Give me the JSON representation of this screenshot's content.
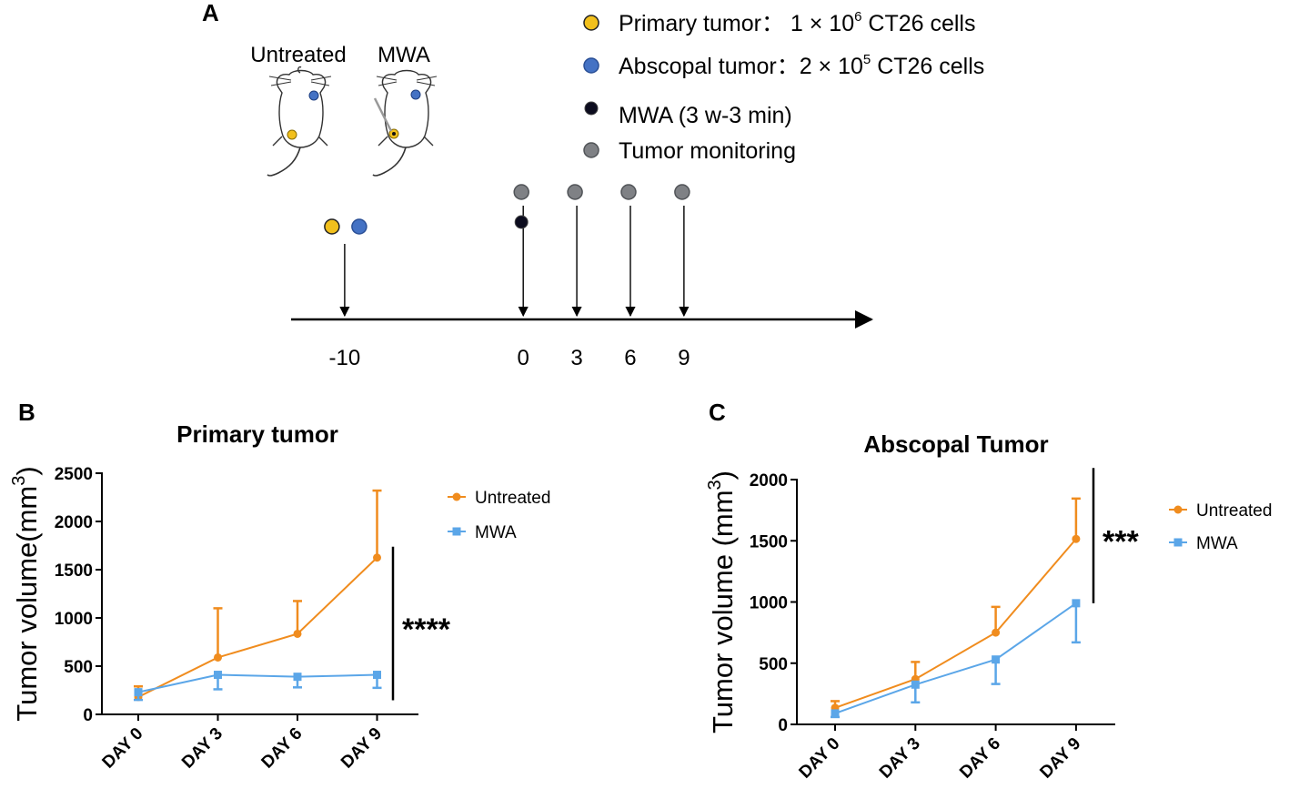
{
  "panel_a": {
    "letter": "A",
    "mouse_labels": [
      "Untreated",
      "MWA"
    ],
    "legend": [
      {
        "prefix": "Primary tumor： 1 × 10",
        "sup": "6",
        "suffix": " CT26 cells",
        "color": "#f2c01c"
      },
      {
        "prefix": "Abscopal tumor：2 × 10",
        "sup": "5",
        "suffix": " CT26 cells",
        "color": "#4472c4"
      },
      {
        "prefix": "MWA (3 w-3 min)",
        "sup": "",
        "suffix": "",
        "color": "#0c0c1e"
      },
      {
        "prefix": "Tumor monitoring",
        "sup": "",
        "suffix": "",
        "color": "#7f8185"
      }
    ],
    "timeline": {
      "days": [
        -10,
        0,
        3,
        6,
        9
      ],
      "day_labels": [
        "-10",
        "0",
        "3",
        "6",
        "9"
      ],
      "range": [
        -13,
        19.5
      ],
      "events": [
        {
          "day": -10,
          "markers": [
            "primary",
            "abscopal"
          ]
        },
        {
          "day": 0,
          "markers": [
            "monitoring",
            "mwa"
          ]
        },
        {
          "day": 3,
          "markers": [
            "monitoring"
          ]
        },
        {
          "day": 6,
          "markers": [
            "monitoring"
          ]
        },
        {
          "day": 9,
          "markers": [
            "monitoring"
          ]
        }
      ]
    }
  },
  "chart_data": [
    {
      "panel": "B",
      "type": "line",
      "title": "Primary tumor",
      "xlabel": "",
      "ylabel": "Tumor volume(mm",
      "ylabel_sup": "3",
      "ylabel_close": ")",
      "categories": [
        "DAY 0",
        "DAY 3",
        "DAY 6",
        "DAY 9"
      ],
      "ylim": [
        0,
        2500
      ],
      "yticks": [
        0,
        500,
        1000,
        1500,
        2000,
        2500
      ],
      "series": [
        {
          "name": "Untreated",
          "color": "#f08c1e",
          "marker": "circle",
          "values": [
            180,
            590,
            835,
            1625
          ],
          "error": [
            110,
            510,
            340,
            695
          ],
          "error_dir": "up"
        },
        {
          "name": "MWA",
          "color": "#5ba6e8",
          "marker": "square",
          "values": [
            230,
            410,
            390,
            410
          ],
          "error": [
            80,
            150,
            110,
            135
          ],
          "error_dir": "down"
        }
      ],
      "significance": "****",
      "legend_position": "right"
    },
    {
      "panel": "C",
      "type": "line",
      "title": "Abscopal Tumor",
      "xlabel": "",
      "ylabel": "Tumor volume (mm",
      "ylabel_sup": "3",
      "ylabel_close": ")",
      "categories": [
        "DAY 0",
        "DAY 3",
        "DAY 6",
        "DAY 9"
      ],
      "ylim": [
        0,
        2000
      ],
      "yticks": [
        0,
        500,
        1000,
        1500,
        2000
      ],
      "series": [
        {
          "name": "Untreated",
          "color": "#f08c1e",
          "marker": "circle",
          "values": [
            135,
            370,
            750,
            1515
          ],
          "error": [
            55,
            140,
            210,
            330
          ],
          "error_dir": "up"
        },
        {
          "name": "MWA",
          "color": "#5ba6e8",
          "marker": "square",
          "values": [
            90,
            325,
            530,
            990
          ],
          "error": [
            30,
            145,
            200,
            320
          ],
          "error_dir": "down"
        }
      ],
      "significance": "***",
      "legend_position": "right"
    }
  ]
}
